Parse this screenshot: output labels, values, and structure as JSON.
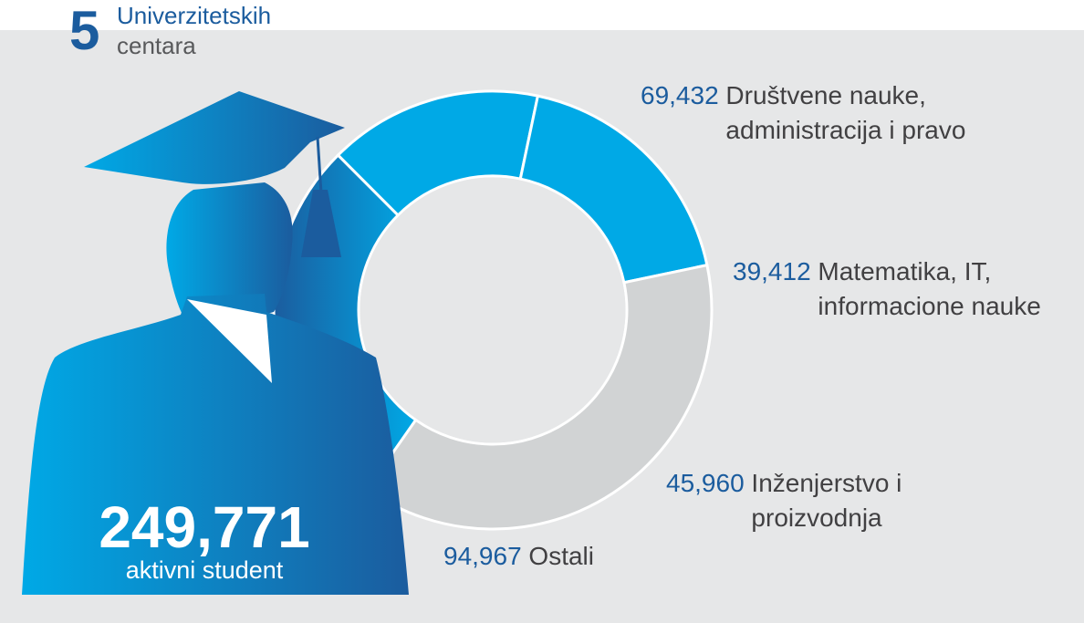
{
  "header": {
    "number": "5",
    "line1": "Univerzitetskih",
    "line2": "centara"
  },
  "total": {
    "value": "249,771",
    "label": "aktivni student"
  },
  "labels": [
    {
      "value": "69,432",
      "line1": "Društvene nauke,",
      "line2": "administracija i pravo"
    },
    {
      "value": "39,412",
      "line1": "Matematika, IT,",
      "line2": "informacione nauke"
    },
    {
      "value": "45,960",
      "line1": "Inženjerstvo i",
      "line2": "proizvodnja"
    },
    {
      "value": "94,967",
      "line1": "Ostali",
      "line2": ""
    }
  ],
  "colors": {
    "dark_blue": "#1b5c9e",
    "light_blue": "#00a9e6",
    "gray_segment": "#d1d3d4",
    "panel": "#e6e7e8"
  },
  "chart_data": {
    "type": "pie",
    "variant": "donut",
    "categories": [
      "Društvene nauke, administracija i pravo",
      "Matematika, IT, informacione nauke",
      "Inženjerstvo i proizvodnja",
      "Ostali"
    ],
    "values": [
      69432,
      39412,
      45960,
      94967
    ],
    "total": 249771,
    "legend": "labels beside segments"
  }
}
